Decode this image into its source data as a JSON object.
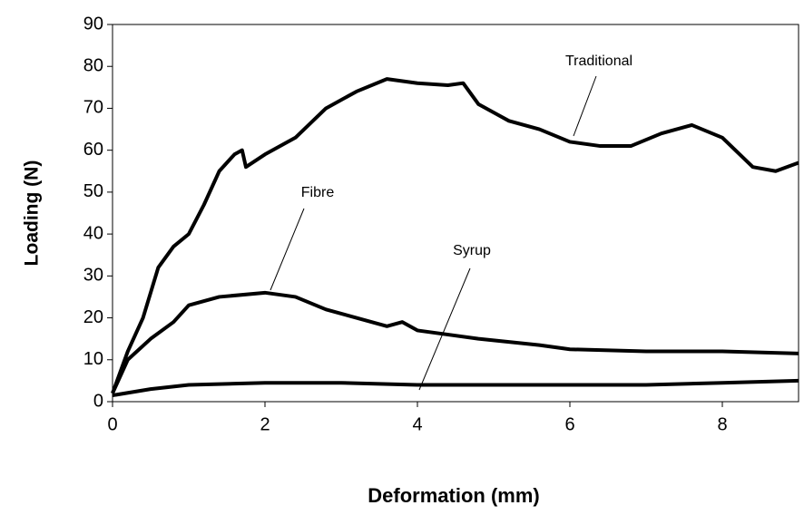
{
  "chart_data": {
    "type": "line",
    "xlabel": "Deformation (mm)",
    "ylabel": "Loading (N)",
    "xlim": [
      0,
      9
    ],
    "ylim": [
      0,
      90
    ],
    "xticks": [
      0,
      2,
      4,
      6,
      8
    ],
    "yticks": [
      0,
      10,
      20,
      30,
      40,
      50,
      60,
      70,
      80,
      90
    ],
    "grid": false,
    "series": [
      {
        "name": "Traditional",
        "color": "#000000",
        "x": [
          0,
          0.2,
          0.4,
          0.6,
          0.8,
          1,
          1.2,
          1.4,
          1.6,
          1.7,
          1.75,
          2,
          2.4,
          2.8,
          3.2,
          3.6,
          4,
          4.4,
          4.6,
          4.8,
          5.2,
          5.6,
          6,
          6.4,
          6.8,
          7.2,
          7.6,
          8,
          8.4,
          8.7,
          9
        ],
        "values": [
          2,
          12,
          20,
          32,
          37,
          40,
          47,
          55,
          59,
          60,
          56,
          59,
          63,
          70,
          74,
          77,
          76,
          75.5,
          76,
          71,
          67,
          65,
          62,
          61,
          61,
          64,
          66,
          63,
          56,
          55,
          57
        ]
      },
      {
        "name": "Fibre",
        "color": "#000000",
        "x": [
          0,
          0.2,
          0.5,
          0.8,
          1,
          1.4,
          2,
          2.4,
          2.8,
          3.2,
          3.6,
          3.8,
          4,
          4.8,
          5.6,
          6,
          7,
          8,
          9
        ],
        "values": [
          2,
          10,
          15,
          19,
          23,
          25,
          26,
          25,
          22,
          20,
          18,
          19,
          17,
          15,
          13.5,
          12.5,
          12,
          12,
          11.5
        ]
      },
      {
        "name": "Syrup",
        "color": "#000000",
        "x": [
          0,
          0.5,
          1,
          2,
          3,
          4,
          5,
          6,
          7,
          8,
          9
        ],
        "values": [
          1.5,
          3,
          4,
          4.5,
          4.5,
          4,
          4,
          4,
          4,
          4.5,
          5
        ]
      }
    ]
  }
}
